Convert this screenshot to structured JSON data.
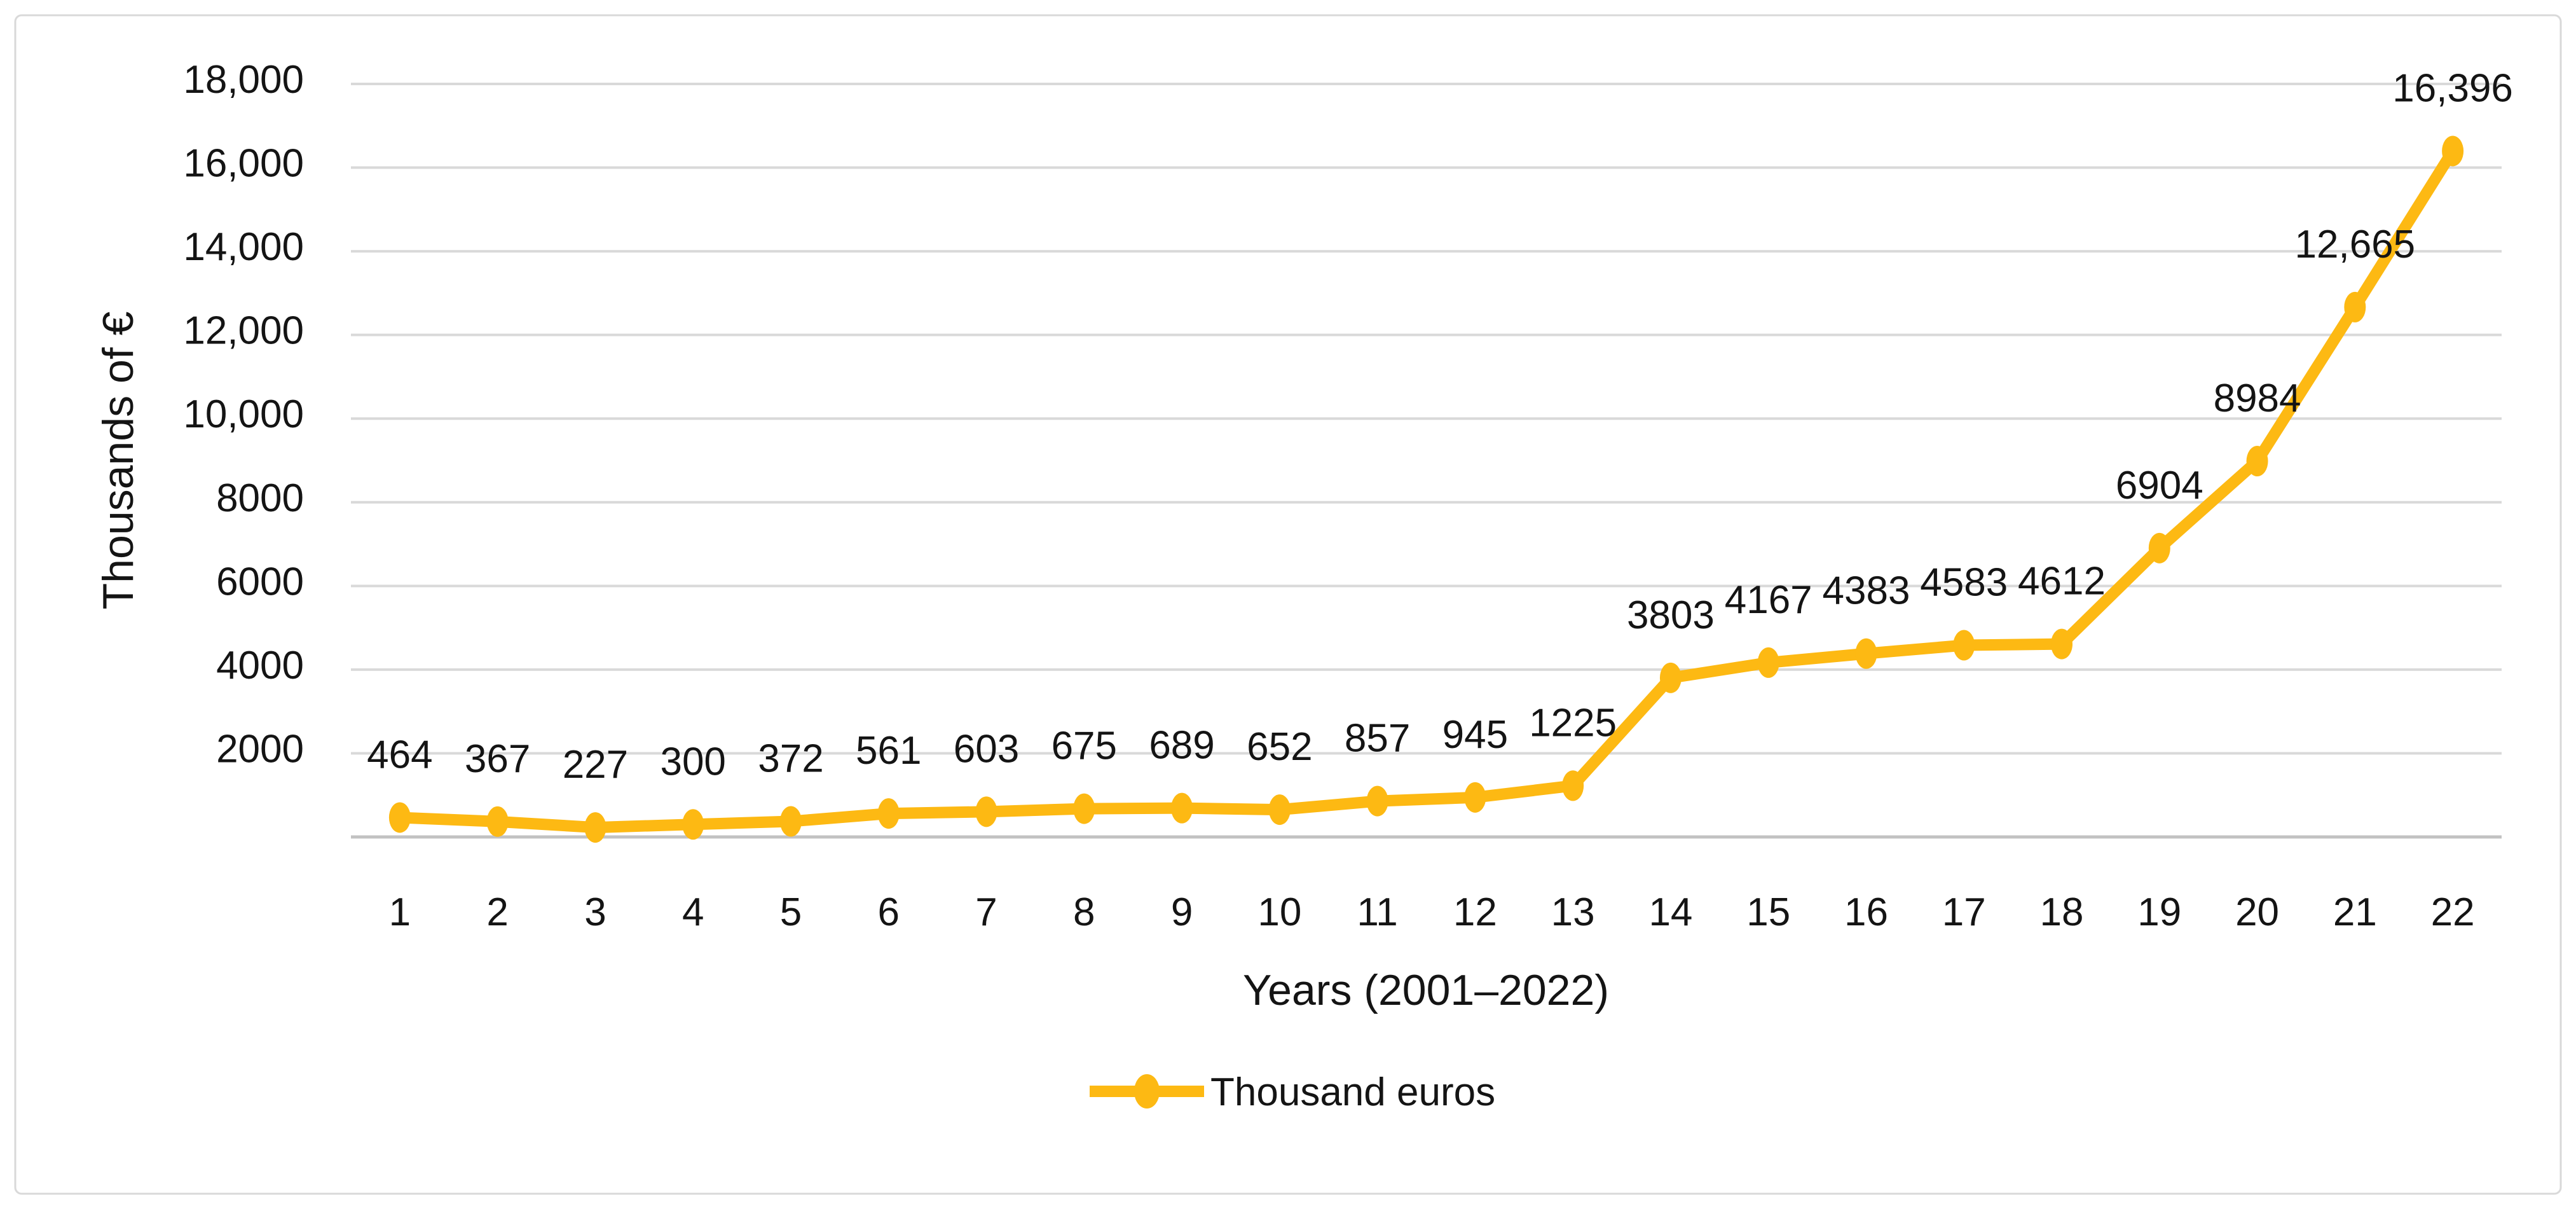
{
  "card": {
    "background": "#ffffff",
    "border_color": "#d9d9d9"
  },
  "chart_data": {
    "type": "line",
    "title": "",
    "xlabel": "Years (2001–2022)",
    "ylabel": "Thousands of €",
    "x_tick_labels": [
      "1",
      "2",
      "3",
      "4",
      "5",
      "6",
      "7",
      "8",
      "9",
      "10",
      "11",
      "12",
      "13",
      "14",
      "15",
      "16",
      "17",
      "18",
      "19",
      "20",
      "21",
      "22"
    ],
    "series": [
      {
        "name": "Thousand euros",
        "color": "#FDB913",
        "values": [
          464,
          367,
          227,
          300,
          372,
          561,
          603,
          675,
          689,
          652,
          857,
          945,
          1225,
          3803,
          4167,
          4383,
          4583,
          4612,
          6904,
          8984,
          12665,
          16396
        ],
        "labels": [
          "464",
          "367",
          "227",
          "300",
          "372",
          "561",
          "603",
          "675",
          "689",
          "652",
          "857",
          "945",
          "1225",
          "3803",
          "4167",
          "4383",
          "4583",
          "4612",
          "6904",
          "8984",
          "12,665",
          "16,396"
        ]
      }
    ],
    "ylim": [
      0,
      18000
    ],
    "y_ticks": [
      {
        "v": 2000,
        "label": "2000"
      },
      {
        "v": 4000,
        "label": "4000"
      },
      {
        "v": 6000,
        "label": "6000"
      },
      {
        "v": 8000,
        "label": "8000"
      },
      {
        "v": 10000,
        "label": "10,000"
      },
      {
        "v": 12000,
        "label": "12,000"
      },
      {
        "v": 14000,
        "label": "14,000"
      },
      {
        "v": 16000,
        "label": "16,000"
      },
      {
        "v": 18000,
        "label": "18,000"
      }
    ],
    "grid": true,
    "grid_color": "#d9d9d9",
    "axis_line_color": "#c2c2c2",
    "legend_position": "bottom"
  }
}
